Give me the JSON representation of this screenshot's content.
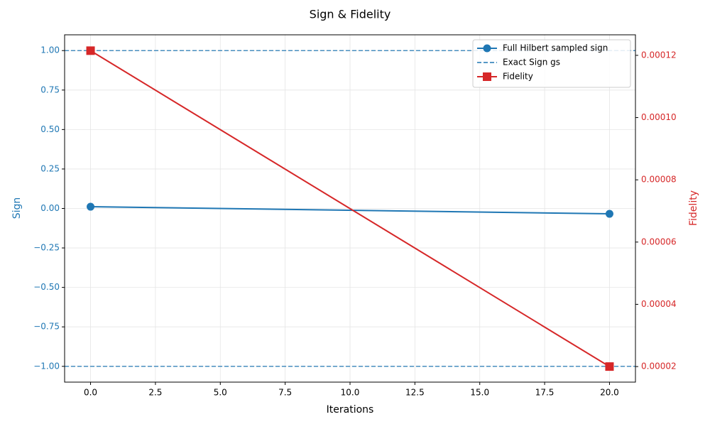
{
  "chart_data": {
    "type": "line",
    "title": "Sign & Fidelity",
    "xlabel": "Iterations",
    "ylabel": "Sign",
    "y2label": "Fidelity",
    "x": [
      0,
      20
    ],
    "series": [
      {
        "name": "Full Hilbert sampled sign",
        "color": "#1f77b4",
        "marker": "circle",
        "values": [
          0.011,
          -0.034
        ]
      },
      {
        "name": "Exact Sign gs",
        "color": "#1f77b4",
        "kind": "hline",
        "dashed": true,
        "values": [
          1,
          -1
        ]
      },
      {
        "name": "Fidelity",
        "color": "#d62728",
        "marker": "square",
        "axis": "y2",
        "values": [
          0.0001215,
          2e-05
        ]
      }
    ],
    "xlim": [
      -1,
      21
    ],
    "xticks": [
      {
        "value": 0,
        "label": "0.0"
      },
      2.5,
      {
        "value": 5,
        "label": "5.0"
      },
      7.5,
      {
        "value": 10,
        "label": "10.0"
      },
      12.5,
      {
        "value": 15,
        "label": "15.0"
      },
      17.5,
      {
        "value": 20,
        "label": "20.0"
      }
    ],
    "ylim": [
      -1.1,
      1.1
    ],
    "yticks": [
      {
        "value": -1,
        "label": "−1.00"
      },
      {
        "value": -0.75,
        "label": "−0.75"
      },
      {
        "value": -0.5,
        "label": "−0.50"
      },
      {
        "value": -0.25,
        "label": "−0.25"
      },
      {
        "value": 0,
        "label": "0.00"
      },
      {
        "value": 0.25,
        "label": "0.25"
      },
      {
        "value": 0.5,
        "label": "0.50"
      },
      {
        "value": 0.75,
        "label": "0.75"
      },
      {
        "value": 1,
        "label": "1.00"
      }
    ],
    "y2lim": [
      1.5e-05,
      0.0001266
    ],
    "y2ticks": [
      2e-05,
      4e-05,
      6e-05,
      8e-05,
      {
        "value": 0.0001,
        "label": "0.00010"
      },
      0.00012
    ],
    "grid": true,
    "legend": "upper right",
    "ycolor": "#1f77b4",
    "y2color": "#d62728"
  }
}
